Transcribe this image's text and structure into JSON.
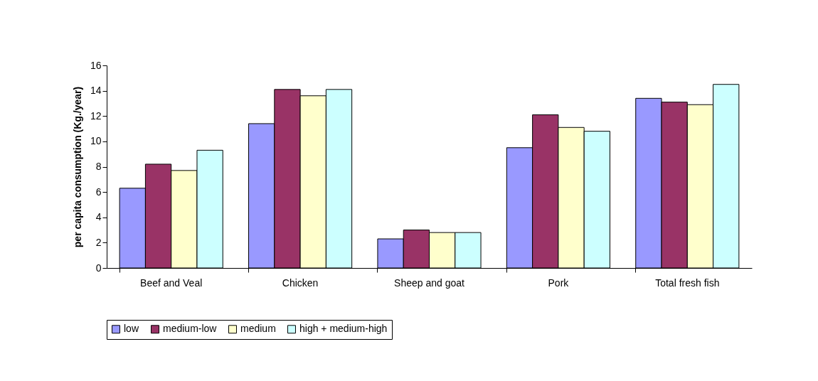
{
  "chart_data": {
    "type": "bar",
    "ylabel": "per capita consumption (Kg./year)",
    "categories": [
      "Beef and Veal",
      "Chicken",
      "Sheep and goat",
      "Pork",
      "Total fresh fish"
    ],
    "series": [
      {
        "name": "low",
        "color": "#9999ff",
        "values": [
          6.3,
          11.4,
          2.3,
          9.5,
          13.4
        ]
      },
      {
        "name": "medium-low",
        "color": "#993366",
        "values": [
          8.2,
          14.1,
          3.0,
          12.1,
          13.1
        ]
      },
      {
        "name": "medium",
        "color": "#ffffcc",
        "values": [
          7.7,
          13.6,
          2.8,
          11.1,
          12.9
        ]
      },
      {
        "name": "high + medium-high",
        "color": "#ccffff",
        "values": [
          9.3,
          14.1,
          2.8,
          10.8,
          14.5
        ]
      }
    ],
    "ylim": [
      0,
      16
    ],
    "yticks": [
      0,
      2,
      4,
      6,
      8,
      10,
      12,
      14,
      16
    ],
    "grid": false,
    "legend": "bottom"
  }
}
